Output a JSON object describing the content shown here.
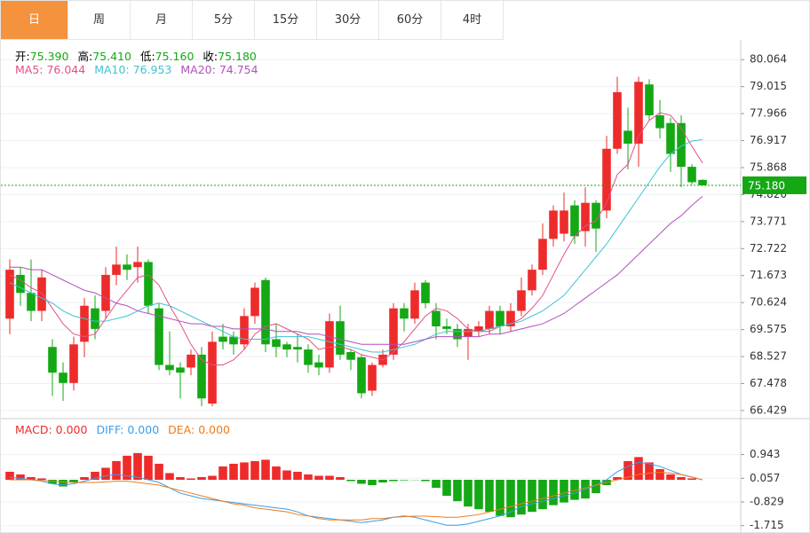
{
  "tabs": [
    "日",
    "周",
    "月",
    "5分",
    "15分",
    "30分",
    "60分",
    "4时"
  ],
  "chart_data": [
    {
      "type": "candlestick",
      "info": [
        {
          "label": "开:",
          "value": "75.390"
        },
        {
          "label": "高:",
          "value": "75.410"
        },
        {
          "label": "低:",
          "value": "75.160"
        },
        {
          "label": "收:",
          "value": "75.180"
        }
      ],
      "up_color": "#ee2b2b",
      "down_color": "#14a814",
      "open": [
        70.0,
        71.7,
        71.0,
        70.3,
        68.9,
        67.9,
        67.5,
        69.1,
        70.4,
        70.3,
        71.7,
        72.1,
        72.0,
        72.2,
        70.4,
        68.2,
        68.1,
        68.1,
        68.6,
        66.7,
        69.3,
        69.3,
        69.0,
        70.1,
        71.5,
        69.2,
        69.0,
        68.9,
        68.8,
        68.3,
        68.1,
        69.9,
        68.7,
        68.5,
        67.2,
        68.2,
        68.6,
        70.4,
        70.0,
        71.4,
        70.3,
        69.7,
        69.6,
        69.3,
        69.5,
        69.6,
        70.3,
        69.7,
        70.3,
        71.1,
        71.9,
        73.1,
        73.3,
        74.4,
        73.4,
        74.5,
        74.2,
        76.6,
        77.3,
        76.8,
        79.1,
        77.9,
        77.6,
        77.6,
        75.9,
        75.39
      ],
      "high": [
        72.3,
        72.0,
        72.3,
        71.9,
        69.2,
        68.3,
        69.3,
        70.8,
        70.9,
        72.0,
        72.8,
        72.5,
        72.8,
        72.3,
        70.6,
        69.5,
        68.3,
        68.8,
        68.9,
        69.5,
        69.8,
        69.5,
        70.4,
        71.4,
        71.6,
        69.8,
        69.1,
        69.4,
        69.0,
        68.6,
        70.2,
        70.5,
        68.8,
        68.6,
        68.3,
        68.8,
        70.6,
        70.6,
        71.4,
        71.5,
        70.6,
        70.0,
        69.8,
        69.8,
        69.9,
        70.5,
        70.5,
        70.6,
        71.6,
        72.1,
        73.7,
        74.4,
        74.9,
        74.6,
        75.1,
        74.6,
        77.1,
        79.4,
        78.2,
        79.4,
        79.3,
        78.5,
        77.8,
        77.9,
        76.0,
        75.41
      ],
      "low": [
        69.4,
        70.5,
        69.9,
        69.9,
        67.0,
        66.8,
        67.2,
        68.5,
        69.2,
        70.0,
        71.3,
        71.5,
        71.4,
        70.2,
        68.0,
        67.8,
        66.9,
        67.8,
        66.6,
        66.6,
        68.8,
        68.6,
        68.8,
        69.8,
        68.7,
        68.5,
        68.5,
        68.3,
        67.9,
        67.8,
        67.9,
        68.4,
        68.0,
        66.9,
        67.0,
        68.1,
        68.4,
        69.5,
        69.8,
        70.4,
        69.2,
        69.4,
        68.9,
        68.4,
        69.3,
        69.4,
        69.4,
        69.5,
        70.1,
        70.9,
        71.7,
        72.8,
        73.0,
        72.9,
        72.8,
        72.6,
        73.9,
        76.4,
        75.8,
        75.9,
        77.7,
        77.0,
        75.7,
        75.1,
        75.2,
        75.16
      ],
      "close": [
        71.9,
        71.0,
        70.3,
        71.6,
        67.9,
        67.5,
        69.0,
        70.5,
        69.6,
        71.7,
        72.1,
        71.9,
        72.2,
        70.5,
        68.2,
        68.0,
        67.9,
        68.6,
        66.9,
        69.1,
        69.1,
        69.0,
        70.1,
        71.2,
        69.0,
        68.9,
        68.8,
        68.8,
        68.2,
        68.1,
        69.9,
        68.6,
        68.4,
        67.1,
        68.2,
        68.6,
        70.4,
        70.0,
        71.1,
        70.6,
        69.7,
        69.6,
        69.2,
        69.6,
        69.7,
        70.3,
        69.7,
        70.3,
        71.1,
        71.9,
        73.1,
        74.2,
        74.2,
        73.2,
        74.5,
        73.5,
        76.6,
        78.8,
        76.8,
        79.2,
        77.9,
        77.4,
        76.4,
        75.9,
        75.3,
        75.18
      ],
      "series": [
        {
          "name": "MA5: 76.044",
          "color": "#e2508c",
          "values": [
            71.7,
            71.5,
            71.2,
            71.0,
            70.4,
            69.8,
            69.4,
            69.3,
            69.4,
            70.0,
            70.6,
            71.1,
            71.6,
            71.7,
            71.3,
            70.5,
            69.8,
            69.0,
            68.4,
            68.2,
            68.2,
            68.4,
            68.8,
            69.4,
            69.7,
            69.8,
            69.6,
            69.4,
            69.2,
            68.8,
            68.9,
            68.9,
            68.8,
            68.6,
            68.5,
            68.4,
            68.7,
            69.1,
            69.6,
            70.1,
            70.4,
            70.3,
            70.0,
            69.6,
            69.5,
            69.5,
            69.7,
            69.8,
            70.0,
            70.4,
            70.9,
            71.7,
            72.5,
            73.2,
            73.6,
            73.8,
            74.5,
            75.6,
            76.0,
            77.1,
            77.7,
            78.0,
            77.9,
            77.4,
            76.7,
            76.044
          ]
        },
        {
          "name": "MA10: 76.953",
          "color": "#3fc3d3",
          "values": [
            71.4,
            71.2,
            71.0,
            70.8,
            70.6,
            70.3,
            70.1,
            70.0,
            69.9,
            69.9,
            70.0,
            70.1,
            70.3,
            70.5,
            70.6,
            70.5,
            70.3,
            70.1,
            69.9,
            69.7,
            69.5,
            69.3,
            69.2,
            69.2,
            69.2,
            69.3,
            69.3,
            69.3,
            69.3,
            69.2,
            69.1,
            69.0,
            68.9,
            68.8,
            68.7,
            68.7,
            68.8,
            68.9,
            69.0,
            69.2,
            69.4,
            69.5,
            69.5,
            69.5,
            69.5,
            69.6,
            69.7,
            69.8,
            69.9,
            70.1,
            70.3,
            70.6,
            70.9,
            71.4,
            71.9,
            72.4,
            72.9,
            73.5,
            74.1,
            74.7,
            75.3,
            75.9,
            76.4,
            76.7,
            76.9,
            76.953
          ]
        },
        {
          "name": "MA20: 74.754",
          "color": "#b34fc0",
          "values": [
            72.0,
            72.0,
            71.9,
            71.9,
            71.7,
            71.5,
            71.3,
            71.1,
            71.0,
            70.8,
            70.6,
            70.5,
            70.3,
            70.2,
            70.1,
            70.0,
            69.9,
            69.8,
            69.8,
            69.7,
            69.7,
            69.6,
            69.6,
            69.6,
            69.6,
            69.5,
            69.5,
            69.5,
            69.4,
            69.4,
            69.3,
            69.2,
            69.1,
            69.0,
            69.0,
            69.0,
            69.0,
            69.0,
            69.1,
            69.2,
            69.3,
            69.3,
            69.3,
            69.3,
            69.3,
            69.4,
            69.4,
            69.5,
            69.6,
            69.7,
            69.8,
            70.0,
            70.2,
            70.5,
            70.8,
            71.1,
            71.4,
            71.7,
            72.1,
            72.5,
            72.9,
            73.3,
            73.7,
            74.0,
            74.4,
            74.754
          ]
        }
      ],
      "last_price": 75.18,
      "last_price_label": "75.180",
      "last_price_color": "#14a814",
      "ylim": [
        66.15,
        80.83
      ],
      "yticks": [
        80.064,
        79.015,
        77.966,
        76.917,
        75.868,
        {
          "value": 74.82,
          "label": "74.820"
        },
        73.771,
        72.722,
        71.673,
        70.624,
        69.575,
        68.527,
        67.478,
        66.429
      ],
      "grid": true
    },
    {
      "type": "macd",
      "up_color": "#ee2b2b",
      "down_color": "#14a814",
      "series": [
        {
          "name": "MACD: 0.000",
          "color": "#ee2b2b",
          "values": [
            0.3,
            0.2,
            0.1,
            0.05,
            -0.15,
            -0.25,
            -0.1,
            0.1,
            0.3,
            0.45,
            0.7,
            0.9,
            1.0,
            0.9,
            0.6,
            0.25,
            0.1,
            0.05,
            0.1,
            0.15,
            0.5,
            0.6,
            0.65,
            0.7,
            0.75,
            0.5,
            0.35,
            0.3,
            0.2,
            0.15,
            0.15,
            0.1,
            -0.05,
            -0.15,
            -0.2,
            -0.1,
            -0.05,
            -0.02,
            -0.01,
            -0.05,
            -0.3,
            -0.6,
            -0.8,
            -1.0,
            -1.1,
            -1.2,
            -1.35,
            -1.4,
            -1.3,
            -1.2,
            -1.1,
            -0.95,
            -0.85,
            -0.75,
            -0.7,
            -0.5,
            -0.2,
            0.1,
            0.7,
            0.85,
            0.65,
            0.4,
            0.2,
            0.1,
            0.05,
            0.0
          ]
        },
        {
          "name": "DIFF: 0.000",
          "color": "#3a9ee8",
          "values": [
            0.1,
            0.05,
            0.0,
            -0.05,
            -0.15,
            -0.2,
            -0.15,
            -0.05,
            0.05,
            0.15,
            0.2,
            0.15,
            0.1,
            0.0,
            -0.1,
            -0.3,
            -0.5,
            -0.6,
            -0.7,
            -0.75,
            -0.8,
            -0.85,
            -0.9,
            -0.95,
            -1.0,
            -1.05,
            -1.1,
            -1.2,
            -1.35,
            -1.4,
            -1.45,
            -1.5,
            -1.55,
            -1.6,
            -1.55,
            -1.5,
            -1.4,
            -1.35,
            -1.4,
            -1.5,
            -1.6,
            -1.7,
            -1.7,
            -1.65,
            -1.55,
            -1.45,
            -1.35,
            -1.2,
            -1.0,
            -0.9,
            -0.8,
            -0.7,
            -0.6,
            -0.5,
            -0.35,
            -0.2,
            0.0,
            0.3,
            0.5,
            0.65,
            0.6,
            0.5,
            0.35,
            0.2,
            0.1,
            0.0
          ]
        },
        {
          "name": "DEA: 0.000",
          "color": "#f07b1a",
          "values": [
            0.0,
            0.0,
            0.0,
            -0.02,
            -0.05,
            -0.08,
            -0.1,
            -0.1,
            -0.1,
            -0.08,
            -0.05,
            -0.05,
            -0.1,
            -0.15,
            -0.2,
            -0.3,
            -0.4,
            -0.5,
            -0.6,
            -0.7,
            -0.8,
            -0.9,
            -0.95,
            -1.05,
            -1.1,
            -1.15,
            -1.2,
            -1.3,
            -1.35,
            -1.45,
            -1.5,
            -1.5,
            -1.5,
            -1.5,
            -1.45,
            -1.45,
            -1.4,
            -1.38,
            -1.36,
            -1.36,
            -1.38,
            -1.4,
            -1.4,
            -1.35,
            -1.3,
            -1.2,
            -1.1,
            -1.0,
            -0.9,
            -0.8,
            -0.7,
            -0.6,
            -0.5,
            -0.4,
            -0.3,
            -0.2,
            -0.1,
            0.0,
            0.1,
            0.2,
            0.25,
            0.28,
            0.25,
            0.2,
            0.1,
            0.0
          ]
        }
      ],
      "ylim": [
        -1.924,
        1.659
      ],
      "yticks": [
        0.943,
        0.057,
        -0.829,
        -1.715
      ],
      "grid": true
    }
  ]
}
